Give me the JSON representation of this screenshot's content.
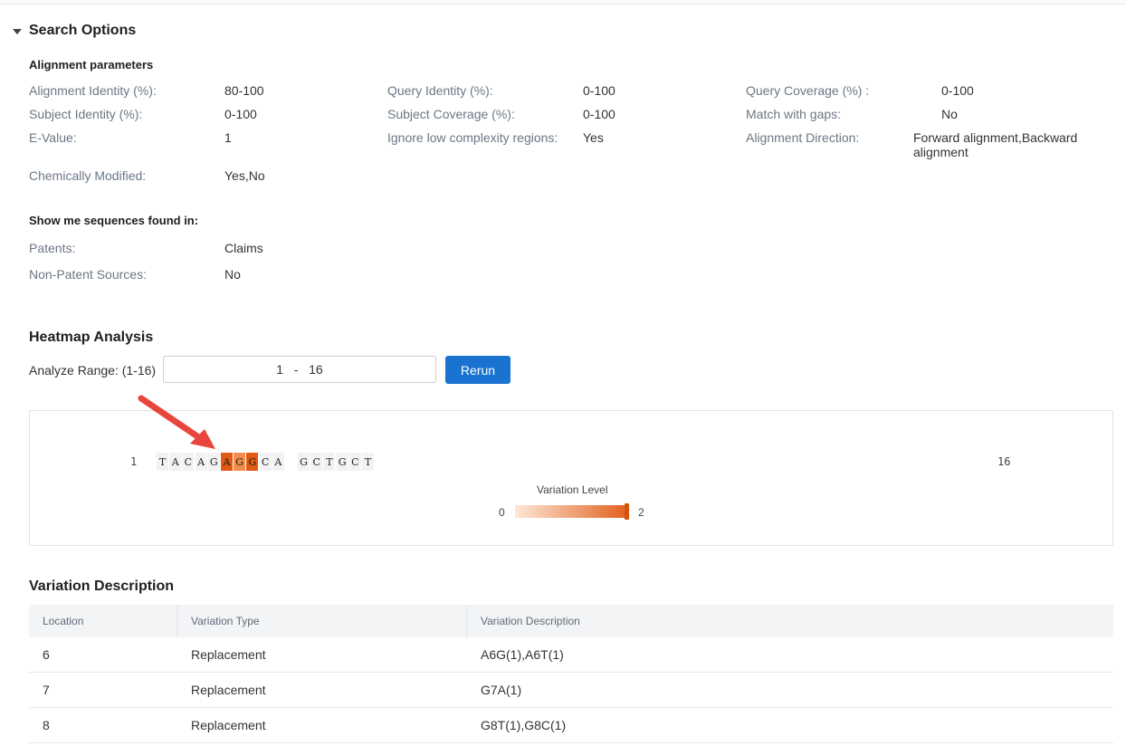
{
  "search_options": {
    "title": "Search Options",
    "alignment_heading": "Alignment parameters",
    "params": [
      {
        "label": "Alignment Identity (%):",
        "value": "80-100"
      },
      {
        "label": "Query Identity (%):",
        "value": "0-100"
      },
      {
        "label": "Query Coverage (%) :",
        "value": "0-100"
      },
      {
        "label": "Subject Identity (%):",
        "value": "0-100"
      },
      {
        "label": "Subject Coverage (%):",
        "value": "0-100"
      },
      {
        "label": "Match with gaps:",
        "value": "No"
      },
      {
        "label": "E-Value:",
        "value": "1"
      },
      {
        "label": "Ignore low complexity regions:",
        "value": "Yes"
      },
      {
        "label": "Alignment Direction:",
        "value": "Forward alignment,Backward alignment"
      },
      {
        "label": "Chemically Modified:",
        "value": "Yes,No"
      }
    ],
    "sources_heading": "Show me sequences found in:",
    "sources": [
      {
        "label": "Patents:",
        "value": "Claims"
      },
      {
        "label": "Non-Patent Sources:",
        "value": "No"
      }
    ]
  },
  "heatmap": {
    "title": "Heatmap Analysis",
    "range_label": "Analyze Range: (1-16)",
    "range_start": "1",
    "range_sep": "-",
    "range_end": "16",
    "rerun_label": "Rerun",
    "seq_start": "1",
    "seq_end": "16",
    "nucleotides": [
      {
        "base": "T",
        "level": 0
      },
      {
        "base": "A",
        "level": 0
      },
      {
        "base": "C",
        "level": 0
      },
      {
        "base": "A",
        "level": 0
      },
      {
        "base": "G",
        "level": 0
      },
      {
        "base": "A",
        "level": 2
      },
      {
        "base": "G",
        "level": 1
      },
      {
        "base": "G",
        "level": 2
      },
      {
        "base": "C",
        "level": 0
      },
      {
        "base": "A",
        "level": 0
      },
      {
        "base": "G",
        "level": 0
      },
      {
        "base": "C",
        "level": 0
      },
      {
        "base": "T",
        "level": 0
      },
      {
        "base": "G",
        "level": 0
      },
      {
        "base": "C",
        "level": 0
      },
      {
        "base": "T",
        "level": 0
      }
    ],
    "legend_title": "Variation Level",
    "legend_min": "0",
    "legend_max": "2",
    "colors": {
      "level0": "#f2f2f2",
      "level1": "#f28c4a",
      "level2": "#e25a12",
      "arrow": "#e8453c"
    }
  },
  "variation": {
    "title": "Variation Description",
    "headers": [
      "Location",
      "Variation Type",
      "Variation Description"
    ],
    "rows": [
      {
        "location": "6",
        "type": "Replacement",
        "description": "A6G(1),A6T(1)"
      },
      {
        "location": "7",
        "type": "Replacement",
        "description": "G7A(1)"
      },
      {
        "location": "8",
        "type": "Replacement",
        "description": "G8T(1),G8C(1)"
      }
    ]
  }
}
